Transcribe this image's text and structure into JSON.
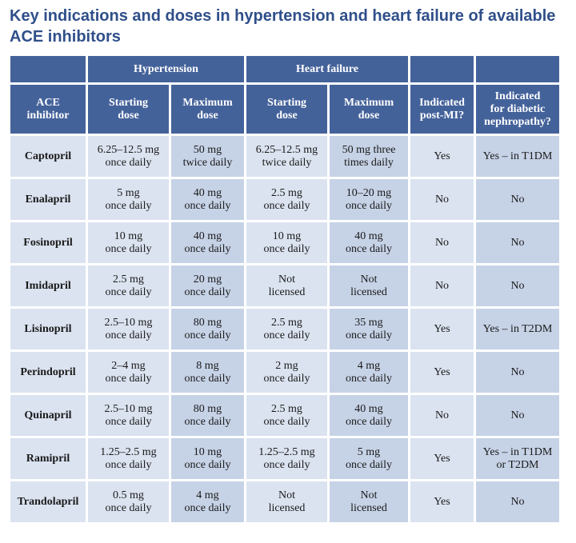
{
  "title": {
    "line1": "Key indications and doses in hypertension and heart failure of available",
    "line2": "ACE inhibitors"
  },
  "table": {
    "groups": {
      "hypertension": "Hypertension",
      "heart_failure": "Heart failure"
    },
    "headers": {
      "drug": [
        "ACE",
        "inhibitor"
      ],
      "ht_start": [
        "Starting",
        "dose"
      ],
      "ht_max": [
        "Maximum",
        "dose"
      ],
      "hf_start": [
        "Starting",
        "dose"
      ],
      "hf_max": [
        "Maximum",
        "dose"
      ],
      "post_mi": [
        "Indicated",
        "post-MI?"
      ],
      "nephro": [
        "Indicated",
        "for diabetic",
        "nephropathy?"
      ]
    },
    "rows": [
      {
        "drug": "Captopril",
        "ht_start": [
          "6.25–12.5 mg",
          "once daily"
        ],
        "ht_max": [
          "50 mg",
          "twice daily"
        ],
        "hf_start": [
          "6.25–12.5 mg",
          "twice daily"
        ],
        "hf_max": [
          "50 mg three",
          "times daily"
        ],
        "post_mi": [
          "Yes"
        ],
        "nephro": [
          "Yes – in T1DM"
        ]
      },
      {
        "drug": "Enalapril",
        "ht_start": [
          "5 mg",
          "once daily"
        ],
        "ht_max": [
          "40 mg",
          "once daily"
        ],
        "hf_start": [
          "2.5 mg",
          "once daily"
        ],
        "hf_max": [
          "10–20 mg",
          "once daily"
        ],
        "post_mi": [
          "No"
        ],
        "nephro": [
          "No"
        ]
      },
      {
        "drug": "Fosinopril",
        "ht_start": [
          "10 mg",
          "once daily"
        ],
        "ht_max": [
          "40 mg",
          "once daily"
        ],
        "hf_start": [
          "10 mg",
          "once daily"
        ],
        "hf_max": [
          "40 mg",
          "once daily"
        ],
        "post_mi": [
          "No"
        ],
        "nephro": [
          "No"
        ]
      },
      {
        "drug": "Imidapril",
        "ht_start": [
          "2.5 mg",
          "once daily"
        ],
        "ht_max": [
          "20 mg",
          "once daily"
        ],
        "hf_start": [
          "Not",
          "licensed"
        ],
        "hf_max": [
          "Not",
          "licensed"
        ],
        "post_mi": [
          "No"
        ],
        "nephro": [
          "No"
        ]
      },
      {
        "drug": "Lisinopril",
        "ht_start": [
          "2.5–10 mg",
          "once daily"
        ],
        "ht_max": [
          "80 mg",
          "once daily"
        ],
        "hf_start": [
          "2.5 mg",
          "once daily"
        ],
        "hf_max": [
          "35 mg",
          "once daily"
        ],
        "post_mi": [
          "Yes"
        ],
        "nephro": [
          "Yes – in T2DM"
        ]
      },
      {
        "drug": "Perindopril",
        "ht_start": [
          "2–4 mg",
          "once daily"
        ],
        "ht_max": [
          "8 mg",
          "once daily"
        ],
        "hf_start": [
          "2 mg",
          "once daily"
        ],
        "hf_max": [
          "4 mg",
          "once daily"
        ],
        "post_mi": [
          "Yes"
        ],
        "nephro": [
          "No"
        ]
      },
      {
        "drug": "Quinapril",
        "ht_start": [
          "2.5–10 mg",
          "once daily"
        ],
        "ht_max": [
          "80 mg",
          "once daily"
        ],
        "hf_start": [
          "2.5 mg",
          "once daily"
        ],
        "hf_max": [
          "40 mg",
          "once daily"
        ],
        "post_mi": [
          "No"
        ],
        "nephro": [
          "No"
        ]
      },
      {
        "drug": "Ramipril",
        "ht_start": [
          "1.25–2.5 mg",
          "once daily"
        ],
        "ht_max": [
          "10 mg",
          "once daily"
        ],
        "hf_start": [
          "1.25–2.5 mg",
          "once daily"
        ],
        "hf_max": [
          "5 mg",
          "once daily"
        ],
        "post_mi": [
          "Yes"
        ],
        "nephro": [
          "Yes – in T1DM",
          "or T2DM"
        ]
      },
      {
        "drug": "Trandolapril",
        "ht_start": [
          "0.5 mg",
          "once daily"
        ],
        "ht_max": [
          "4 mg",
          "once daily"
        ],
        "hf_start": [
          "Not",
          "licensed"
        ],
        "hf_max": [
          "Not",
          "licensed"
        ],
        "post_mi": [
          "Yes"
        ],
        "nephro": [
          "No"
        ]
      }
    ]
  },
  "colors": {
    "title": "#2f4f8a",
    "header_bg": "#44629a",
    "cell_light": "#dbe3f0",
    "cell_dark": "#c6d2e6"
  }
}
